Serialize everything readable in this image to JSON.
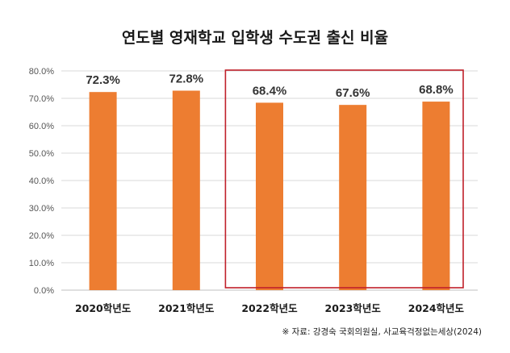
{
  "chart_data": {
    "type": "bar",
    "title": "연도별 영재학교 입학생 수도권 출신 비율",
    "categories": [
      "2020학년도",
      "2021학년도",
      "2022학년도",
      "2023학년도",
      "2024학년도"
    ],
    "values": [
      72.3,
      72.8,
      68.4,
      67.6,
      68.8
    ],
    "value_labels": [
      "72.3%",
      "72.8%",
      "68.4%",
      "67.6%",
      "68.8%"
    ],
    "ylim": [
      0,
      80
    ],
    "yticks": [
      0,
      10,
      20,
      30,
      40,
      50,
      60,
      70,
      80
    ],
    "ytick_labels": [
      "0.0%",
      "10.0%",
      "20.0%",
      "30.0%",
      "40.0%",
      "50.0%",
      "60.0%",
      "70.0%",
      "80.0%"
    ],
    "xlabel": "",
    "ylabel": "",
    "grid": true,
    "legend": "none",
    "bar_color": "#ed7d31",
    "highlight": {
      "categories": [
        "2022학년도",
        "2023학년도",
        "2024학년도"
      ],
      "color": "#c0202a"
    },
    "source": "※ 자료: 강경숙 국회의원실, 사교육걱정없는세상(2024)"
  }
}
